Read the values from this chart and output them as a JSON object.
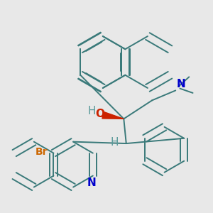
{
  "bg_color": "#e8e8e8",
  "bond_color": "#3a7a7a",
  "bond_width": 1.4,
  "atom_colors": {
    "N": "#0000cc",
    "O": "#cc2200",
    "Br": "#cc6600",
    "H_label": "#5a9a9a",
    "C": "#3a7a7a"
  },
  "font_size_atom": 11,
  "font_size_small": 9,
  "wedge_color": "#cc2200"
}
